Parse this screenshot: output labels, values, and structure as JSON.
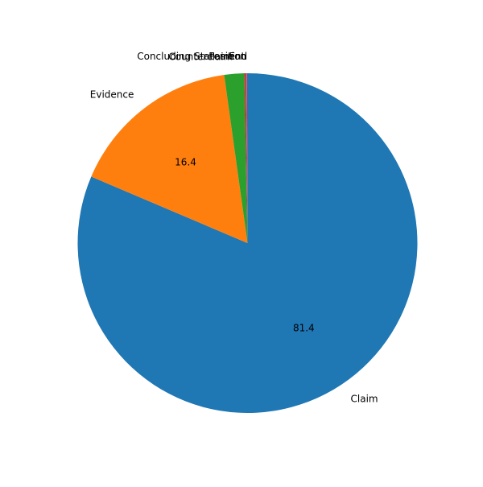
{
  "chart_data": {
    "type": "pie",
    "title": "",
    "start_angle_deg": 90,
    "direction": "clockwise",
    "slices": [
      {
        "label": "Claim",
        "value": 81.4,
        "pct_label": "81.4",
        "color": "#1f77b4"
      },
      {
        "label": "Evidence",
        "value": 16.4,
        "pct_label": "16.4",
        "color": "#ff7f0e"
      },
      {
        "label": "Counterclaim",
        "value": 1.9,
        "pct_label": "",
        "color": "#2ca02c"
      },
      {
        "label": "Concluding Statement",
        "value": 0.15,
        "pct_label": "",
        "color": "#d62728"
      },
      {
        "label": "Position",
        "value": 0.1,
        "pct_label": "",
        "color": "#9467bd"
      },
      {
        "label": "End",
        "value": 0.05,
        "pct_label": "",
        "color": "#8c564b"
      }
    ]
  }
}
